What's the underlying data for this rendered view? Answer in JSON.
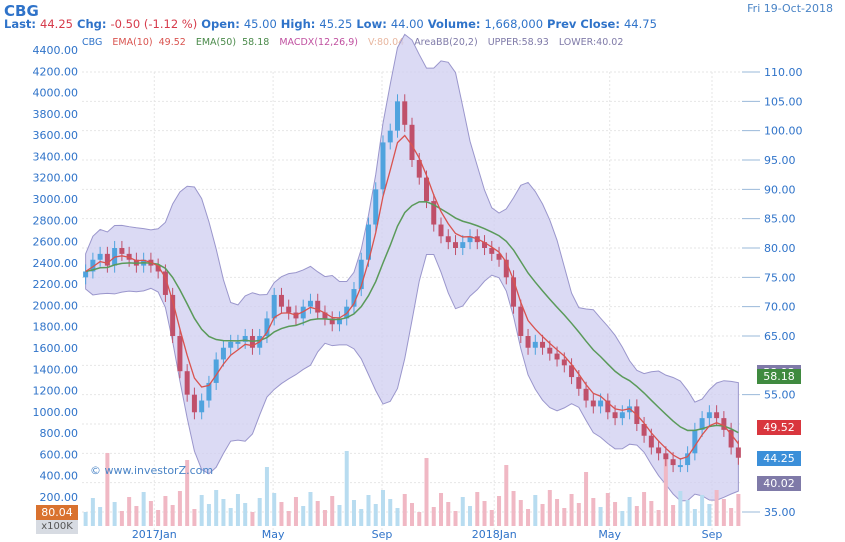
{
  "header": {
    "ticker": "CBG",
    "date": "Fri 19-Oct-2018",
    "last_label": "Last:",
    "last": "44.25",
    "chg_label": "Chg:",
    "chg": "-0.50 (-1.12 %)",
    "open_label": "Open:",
    "open": "45.00",
    "high_label": "High:",
    "high": "45.25",
    "low_label": "Low:",
    "low": "44.00",
    "volume_label": "Volume:",
    "volume": "1,668,000",
    "prev_label": "Prev Close:",
    "prev": "44.75"
  },
  "legend": {
    "symbol": "CBG",
    "ema10": "EMA(10)",
    "ema10_val": "49.52",
    "ema50": "EMA(50)",
    "ema50_val": "58.18",
    "macd": "MACDX(12,26,9)",
    "vol": "V:80.04",
    "bb": "AreaBB(20,2)",
    "upper": "UPPER:58.93",
    "lower": "LOWER:40.02"
  },
  "colors": {
    "up": "#4fa3de",
    "down": "#c0506a",
    "ema10": "#d9534f",
    "ema50": "#5a9a5a",
    "band": "#cfcdf0",
    "band_edge": "#9a96cc",
    "vol_up": "#b8dcf0",
    "vol_down": "#f0b8c4",
    "text": "#2f73c9"
  },
  "badges": [
    {
      "label": "58.93",
      "color": "#7f7aa8",
      "value": 58.93
    },
    {
      "label": "58.18",
      "color": "#3f8a3f",
      "value": 58.18
    },
    {
      "label": "49.52",
      "color": "#d9363e",
      "value": 49.52
    },
    {
      "label": "44.25",
      "color": "#3b8fd9",
      "value": 44.25
    },
    {
      "label": "40.02",
      "color": "#7f7aa8",
      "value": 40.02
    }
  ],
  "volume_box": {
    "value": "80.04",
    "unit": "x100K"
  },
  "watermark": "© www.investorZ.com",
  "chart_data": {
    "type": "candlestick",
    "title": "CBG",
    "y_right": {
      "ticks": [
        35,
        40,
        45,
        50,
        55,
        60,
        65,
        70,
        75,
        80,
        85,
        90,
        95,
        100,
        105,
        110
      ],
      "tick_labels": [
        "35.00",
        "",
        "",
        "",
        "55.00",
        "",
        "65.00",
        "70.00",
        "75.00",
        "80.00",
        "85.00",
        "90.00",
        "95.00",
        "100.00",
        "105.00",
        "110.00"
      ]
    },
    "y_left": {
      "ticks": [
        200,
        400,
        600,
        800,
        1000,
        1200,
        1400,
        1600,
        1800,
        2000,
        2200,
        2400,
        2600,
        2800,
        3000,
        3200,
        3400,
        3600,
        3800,
        4000,
        4200,
        4400
      ],
      "tick_labels": [
        "200.00",
        "400.00",
        "600.00",
        "800.00",
        "1000.00",
        "1200.00",
        "1400.00",
        "1600.00",
        "1800.00",
        "2000.00",
        "2200.00",
        "2400.00",
        "2600.00",
        "2800.00",
        "3000.00",
        "3200.00",
        "3400.00",
        "3600.00",
        "3800.00",
        "4000.00",
        "4200.00",
        "4400.00"
      ]
    },
    "x_labels": [
      {
        "label": "2017Jan",
        "t": 0.155
      },
      {
        "label": "May",
        "t": 0.335
      },
      {
        "label": "Sep",
        "t": 0.5
      },
      {
        "label": "2018Jan",
        "t": 0.67
      },
      {
        "label": "May",
        "t": 0.845
      },
      {
        "label": "Sep",
        "t": 1.0
      }
    ],
    "closes": [
      76,
      78,
      79,
      77,
      80,
      79,
      78,
      77,
      78,
      77,
      76,
      72,
      65,
      59,
      55,
      52,
      54,
      57,
      61,
      63,
      64,
      64,
      65,
      63,
      65,
      68,
      72,
      70,
      69,
      68,
      70,
      71,
      69,
      68,
      67,
      68,
      70,
      73,
      78,
      84,
      90,
      98,
      100,
      105,
      101,
      95,
      92,
      88,
      84,
      82,
      81,
      80,
      81,
      82,
      81,
      80,
      79,
      78,
      75,
      70,
      65,
      63,
      64,
      63,
      62,
      61,
      60,
      58,
      56,
      54,
      53,
      54,
      52,
      51,
      52,
      53,
      50,
      48,
      46,
      45,
      44,
      43,
      43,
      45,
      49,
      51,
      52,
      51,
      49,
      46,
      44.25
    ],
    "ema10_last": 49.52,
    "ema50_last": 58.18,
    "bb_upper_last": 58.93,
    "bb_lower_last": 40.02,
    "volume_last": 80.04
  }
}
